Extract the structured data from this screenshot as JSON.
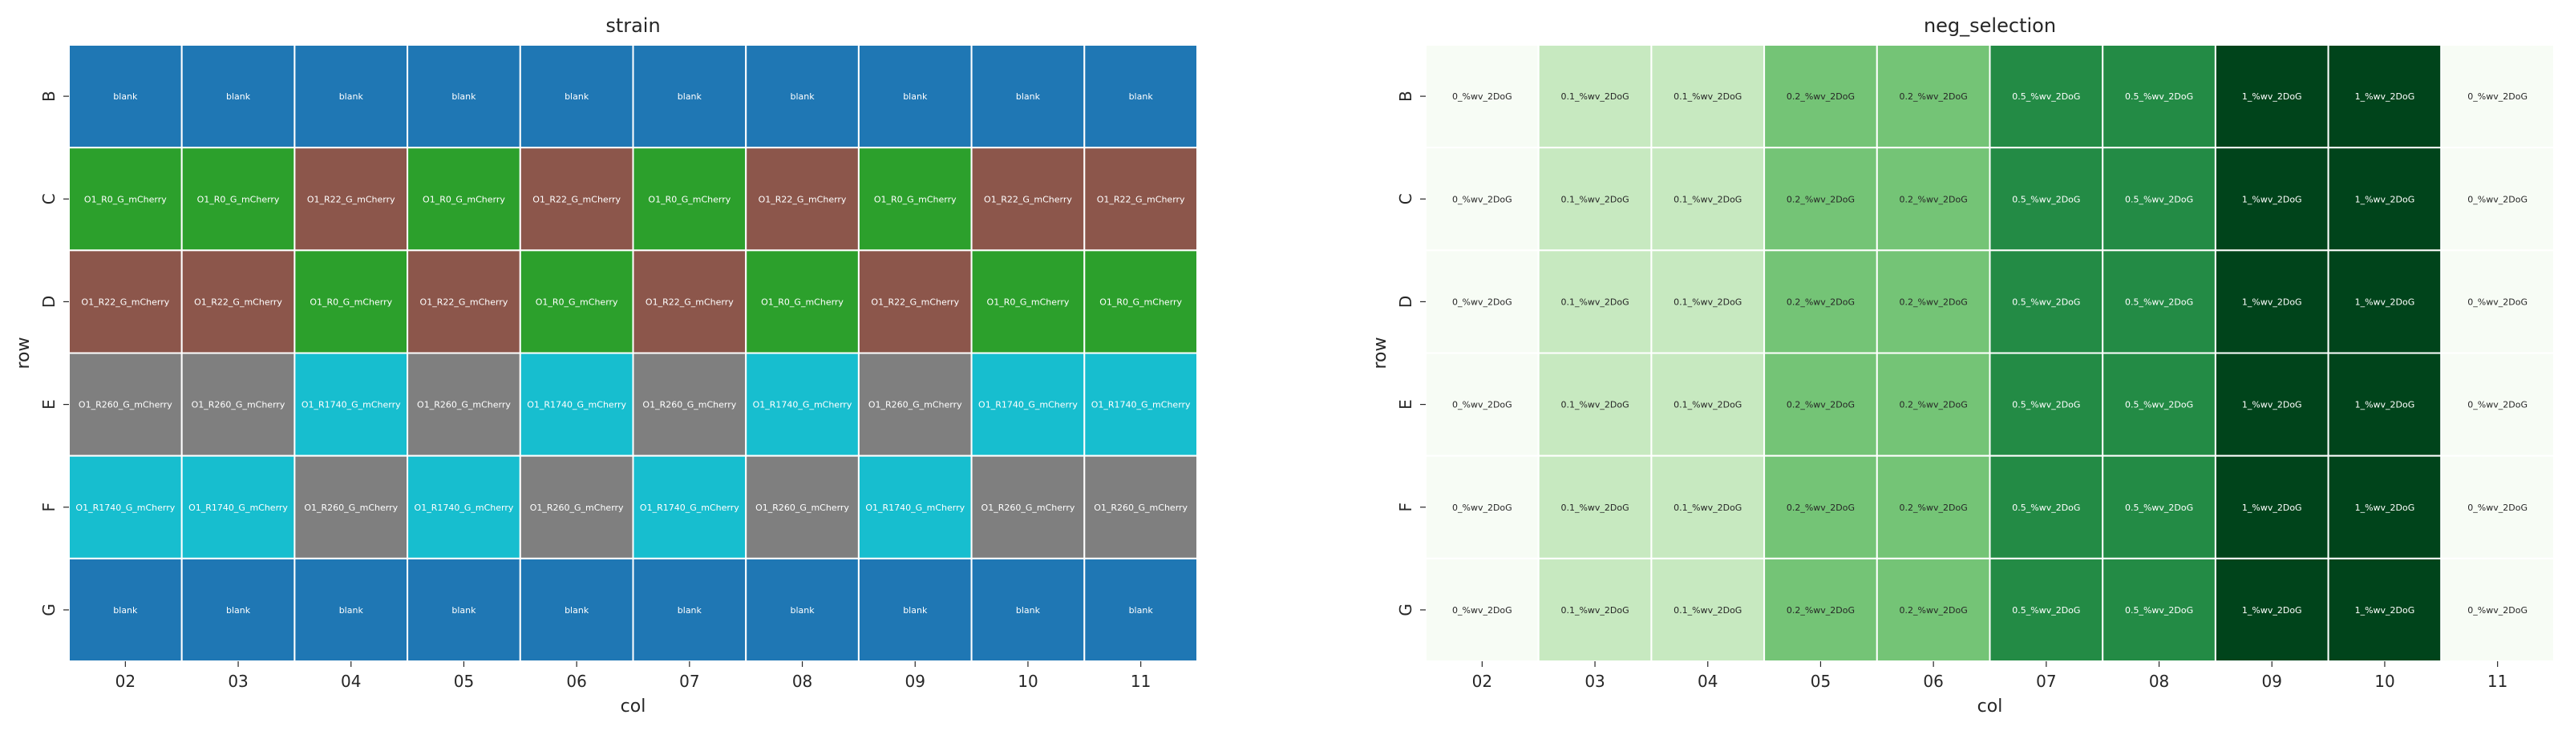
{
  "chart_data": [
    {
      "type": "heatmap",
      "title": "strain",
      "xlabel": "col",
      "ylabel": "row",
      "x": [
        "02",
        "03",
        "04",
        "05",
        "06",
        "07",
        "08",
        "09",
        "10",
        "11"
      ],
      "y": [
        "B",
        "C",
        "D",
        "E",
        "F",
        "G"
      ],
      "legend": "none",
      "colors": {
        "blank": "#1f77b4",
        "O1_R0_G_mCherry": "#2ca02c",
        "O1_R22_G_mCherry": "#8c564b",
        "O1_R260_G_mCherry": "#7f7f7f",
        "O1_R1740_G_mCherry": "#17becf"
      },
      "cells": [
        [
          "blank",
          "blank",
          "blank",
          "blank",
          "blank",
          "blank",
          "blank",
          "blank",
          "blank",
          "blank"
        ],
        [
          "O1_R0_G_mCherry",
          "O1_R0_G_mCherry",
          "O1_R22_G_mCherry",
          "O1_R0_G_mCherry",
          "O1_R22_G_mCherry",
          "O1_R0_G_mCherry",
          "O1_R22_G_mCherry",
          "O1_R0_G_mCherry",
          "O1_R22_G_mCherry",
          "O1_R22_G_mCherry"
        ],
        [
          "O1_R22_G_mCherry",
          "O1_R22_G_mCherry",
          "O1_R0_G_mCherry",
          "O1_R22_G_mCherry",
          "O1_R0_G_mCherry",
          "O1_R22_G_mCherry",
          "O1_R0_G_mCherry",
          "O1_R22_G_mCherry",
          "O1_R0_G_mCherry",
          "O1_R0_G_mCherry"
        ],
        [
          "O1_R260_G_mCherry",
          "O1_R260_G_mCherry",
          "O1_R1740_G_mCherry",
          "O1_R260_G_mCherry",
          "O1_R1740_G_mCherry",
          "O1_R260_G_mCherry",
          "O1_R1740_G_mCherry",
          "O1_R260_G_mCherry",
          "O1_R1740_G_mCherry",
          "O1_R1740_G_mCherry"
        ],
        [
          "O1_R1740_G_mCherry",
          "O1_R1740_G_mCherry",
          "O1_R260_G_mCherry",
          "O1_R1740_G_mCherry",
          "O1_R260_G_mCherry",
          "O1_R1740_G_mCherry",
          "O1_R260_G_mCherry",
          "O1_R1740_G_mCherry",
          "O1_R260_G_mCherry",
          "O1_R260_G_mCherry"
        ],
        [
          "blank",
          "blank",
          "blank",
          "blank",
          "blank",
          "blank",
          "blank",
          "blank",
          "blank",
          "blank"
        ]
      ]
    },
    {
      "type": "heatmap",
      "title": "neg_selection",
      "xlabel": "col",
      "ylabel": "row",
      "x": [
        "02",
        "03",
        "04",
        "05",
        "06",
        "07",
        "08",
        "09",
        "10",
        "11"
      ],
      "y": [
        "B",
        "C",
        "D",
        "E",
        "F",
        "G"
      ],
      "legend": "none",
      "colors": {
        "0_%wv_2DoG": "#f7fcf5",
        "0.1_%wv_2DoG": "#c7e9c0",
        "0.2_%wv_2DoG": "#74c476",
        "0.5_%wv_2DoG": "#238b45",
        "1_%wv_2DoG": "#00441b"
      },
      "text_colors": {
        "0_%wv_2DoG": "#262626",
        "0.1_%wv_2DoG": "#262626",
        "0.2_%wv_2DoG": "#262626",
        "0.5_%wv_2DoG": "#ffffff",
        "1_%wv_2DoG": "#ffffff"
      },
      "cells": [
        [
          "0_%wv_2DoG",
          "0.1_%wv_2DoG",
          "0.1_%wv_2DoG",
          "0.2_%wv_2DoG",
          "0.2_%wv_2DoG",
          "0.5_%wv_2DoG",
          "0.5_%wv_2DoG",
          "1_%wv_2DoG",
          "1_%wv_2DoG",
          "0_%wv_2DoG"
        ],
        [
          "0_%wv_2DoG",
          "0.1_%wv_2DoG",
          "0.1_%wv_2DoG",
          "0.2_%wv_2DoG",
          "0.2_%wv_2DoG",
          "0.5_%wv_2DoG",
          "0.5_%wv_2DoG",
          "1_%wv_2DoG",
          "1_%wv_2DoG",
          "0_%wv_2DoG"
        ],
        [
          "0_%wv_2DoG",
          "0.1_%wv_2DoG",
          "0.1_%wv_2DoG",
          "0.2_%wv_2DoG",
          "0.2_%wv_2DoG",
          "0.5_%wv_2DoG",
          "0.5_%wv_2DoG",
          "1_%wv_2DoG",
          "1_%wv_2DoG",
          "0_%wv_2DoG"
        ],
        [
          "0_%wv_2DoG",
          "0.1_%wv_2DoG",
          "0.1_%wv_2DoG",
          "0.2_%wv_2DoG",
          "0.2_%wv_2DoG",
          "0.5_%wv_2DoG",
          "0.5_%wv_2DoG",
          "1_%wv_2DoG",
          "1_%wv_2DoG",
          "0_%wv_2DoG"
        ],
        [
          "0_%wv_2DoG",
          "0.1_%wv_2DoG",
          "0.1_%wv_2DoG",
          "0.2_%wv_2DoG",
          "0.2_%wv_2DoG",
          "0.5_%wv_2DoG",
          "0.5_%wv_2DoG",
          "1_%wv_2DoG",
          "1_%wv_2DoG",
          "0_%wv_2DoG"
        ],
        [
          "0_%wv_2DoG",
          "0.1_%wv_2DoG",
          "0.1_%wv_2DoG",
          "0.2_%wv_2DoG",
          "0.2_%wv_2DoG",
          "0.5_%wv_2DoG",
          "0.5_%wv_2DoG",
          "1_%wv_2DoG",
          "1_%wv_2DoG",
          "0_%wv_2DoG"
        ]
      ]
    }
  ]
}
